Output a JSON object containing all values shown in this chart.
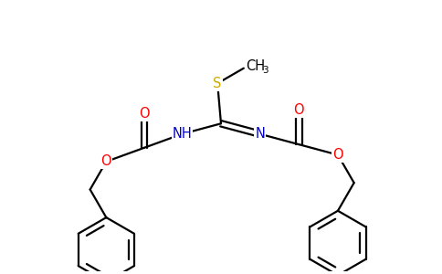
{
  "bg_color": "#ffffff",
  "atom_colors": {
    "C": "#000000",
    "N": "#0000cd",
    "O": "#ff0000",
    "S": "#ccaa00",
    "H": "#000000"
  },
  "bond_color": "#000000",
  "bond_width": 1.6,
  "figsize": [
    4.84,
    3.0
  ],
  "dpi": 100
}
